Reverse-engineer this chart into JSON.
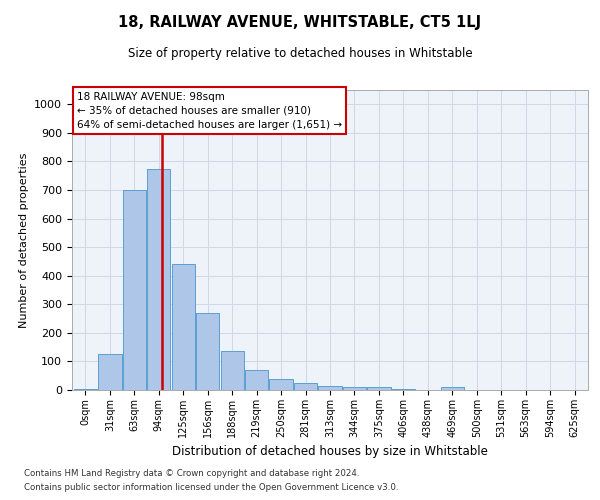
{
  "title": "18, RAILWAY AVENUE, WHITSTABLE, CT5 1LJ",
  "subtitle": "Size of property relative to detached houses in Whitstable",
  "xlabel": "Distribution of detached houses by size in Whitstable",
  "ylabel": "Number of detached properties",
  "footnote1": "Contains HM Land Registry data © Crown copyright and database right 2024.",
  "footnote2": "Contains public sector information licensed under the Open Government Licence v3.0.",
  "bar_labels": [
    "0sqm",
    "31sqm",
    "63sqm",
    "94sqm",
    "125sqm",
    "156sqm",
    "188sqm",
    "219sqm",
    "250sqm",
    "281sqm",
    "313sqm",
    "344sqm",
    "375sqm",
    "406sqm",
    "438sqm",
    "469sqm",
    "500sqm",
    "531sqm",
    "563sqm",
    "594sqm",
    "625sqm"
  ],
  "bar_values": [
    5,
    125,
    700,
    775,
    440,
    270,
    135,
    70,
    40,
    25,
    15,
    12,
    10,
    5,
    0,
    10,
    0,
    0,
    0,
    0,
    0
  ],
  "bar_color": "#aec6e8",
  "bar_edge_color": "#5a9fd4",
  "grid_color": "#d0d8e8",
  "bg_color": "#eef2f9",
  "ylim": [
    0,
    1050
  ],
  "yticks": [
    0,
    100,
    200,
    300,
    400,
    500,
    600,
    700,
    800,
    900,
    1000
  ],
  "property_size": 98,
  "vline_color": "#cc0000",
  "annotation_line1": "18 RAILWAY AVENUE: 98sqm",
  "annotation_line2": "← 35% of detached houses are smaller (910)",
  "annotation_line3": "64% of semi-detached houses are larger (1,651) →",
  "annotation_box_color": "#ffffff",
  "annotation_box_edge": "#cc0000",
  "bin_width": 31
}
